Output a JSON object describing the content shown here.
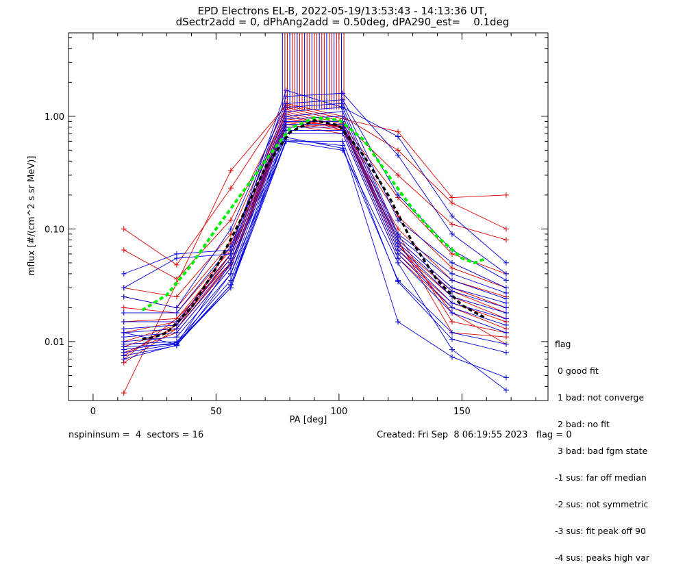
{
  "title_line1": "EPD Electrons EL-B, 2022-05-19/13:53:43 - 14:13:36 UT,",
  "title_line2": "dSectr2add = 0, dPhAng2add = 0.50deg, dPA290_est=    0.1deg",
  "footer": {
    "left": "nspininsum =  4  sectors = 16",
    "right": "Created: Fri Sep  8 06:19:55 2023   flag = 0"
  },
  "legend": {
    "title": "flag",
    "items": [
      " 0 good fit",
      " 1 bad: not converge",
      " 2 bad: no fit",
      " 3 bad: bad fgm state",
      "-1 sus: far off median",
      "-2 sus: not symmetric",
      "-3 sus: fit peak off 90",
      "-4 sus: peaks high var"
    ]
  },
  "colors": {
    "red": "#dd0000",
    "blue": "#0000dd",
    "green": "#00ee00",
    "black": "#000000"
  },
  "chart_data": {
    "type": "line",
    "xlabel": "PA [deg]",
    "ylabel": "mflux [#/(cm^2 s sr MeV)]",
    "xlim": [
      -10,
      185
    ],
    "ylim": [
      0.003,
      5.5
    ],
    "ylog": true,
    "xticks": [
      0,
      50,
      100,
      150
    ],
    "yticks": [
      0.01,
      0.1,
      1.0
    ],
    "ytick_labels": [
      "0.01",
      "0.10",
      "1.00"
    ],
    "pa_bins": [
      12.5,
      34,
      56,
      78.5,
      101.5,
      124,
      146,
      168
    ],
    "series": [
      {
        "color": "red",
        "values": [
          0.0035,
          0.033,
          0.33,
          1.25,
          0.95,
          0.73,
          0.19,
          0.2
        ]
      },
      {
        "color": "red",
        "values": [
          0.1,
          0.048,
          0.23,
          1.3,
          1.0,
          0.5,
          0.17,
          0.1
        ]
      },
      {
        "color": "red",
        "values": [
          0.065,
          0.036,
          0.12,
          1.2,
          0.9,
          0.3,
          0.11,
          0.08
        ]
      },
      {
        "color": "red",
        "values": [
          0.03,
          0.025,
          0.09,
          1.15,
          0.85,
          0.19,
          0.06,
          0.04
        ]
      },
      {
        "color": "red",
        "values": [
          0.025,
          0.02,
          0.075,
          1.1,
          0.8,
          0.13,
          0.045,
          0.03
        ]
      },
      {
        "color": "red",
        "values": [
          0.02,
          0.018,
          0.065,
          1.05,
          0.75,
          0.1,
          0.035,
          0.025
        ]
      },
      {
        "color": "red",
        "values": [
          0.015,
          0.016,
          0.06,
          1.0,
          0.78,
          0.08,
          0.03,
          0.02
        ]
      },
      {
        "color": "red",
        "values": [
          0.012,
          0.015,
          0.055,
          0.95,
          0.8,
          0.07,
          0.028,
          0.018
        ]
      },
      {
        "color": "red",
        "values": [
          0.01,
          0.014,
          0.05,
          0.9,
          0.82,
          0.065,
          0.025,
          0.016
        ]
      },
      {
        "color": "red",
        "values": [
          0.009,
          0.013,
          0.048,
          0.88,
          0.75,
          0.06,
          0.022,
          0.015
        ]
      },
      {
        "color": "red",
        "values": [
          0.008,
          0.012,
          0.045,
          0.85,
          0.7,
          0.055,
          0.02,
          0.013
        ]
      },
      {
        "color": "red",
        "values": [
          0.0075,
          0.014,
          0.07,
          1.2,
          0.9,
          0.09,
          0.015,
          0.012
        ]
      },
      {
        "color": "red",
        "values": [
          0.007,
          0.016,
          0.05,
          0.95,
          0.8,
          0.08,
          0.012,
          0.011
        ]
      },
      {
        "color": "red",
        "values": [
          0.0065,
          0.013,
          0.06,
          0.8,
          0.85,
          0.075,
          0.018,
          0.0095
        ]
      },
      {
        "color": "blue",
        "values": [
          0.04,
          0.06,
          0.065,
          1.7,
          1.2,
          0.66,
          0.13,
          0.05
        ]
      },
      {
        "color": "blue",
        "values": [
          0.03,
          0.055,
          0.06,
          1.5,
          1.6,
          0.45,
          0.09,
          0.04
        ]
      },
      {
        "color": "blue",
        "values": [
          0.025,
          0.02,
          0.1,
          1.3,
          1.4,
          0.2,
          0.065,
          0.035
        ]
      },
      {
        "color": "blue",
        "values": [
          0.018,
          0.018,
          0.07,
          1.2,
          1.3,
          0.12,
          0.05,
          0.03
        ]
      },
      {
        "color": "blue",
        "values": [
          0.015,
          0.015,
          0.06,
          1.1,
          1.2,
          0.09,
          0.04,
          0.027
        ]
      },
      {
        "color": "blue",
        "values": [
          0.013,
          0.014,
          0.055,
          1.0,
          1.1,
          0.085,
          0.035,
          0.024
        ]
      },
      {
        "color": "blue",
        "values": [
          0.012,
          0.013,
          0.05,
          0.95,
          1.0,
          0.08,
          0.03,
          0.022
        ]
      },
      {
        "color": "blue",
        "values": [
          0.011,
          0.012,
          0.045,
          0.9,
          0.9,
          0.075,
          0.028,
          0.02
        ]
      },
      {
        "color": "blue",
        "values": [
          0.01,
          0.011,
          0.04,
          0.85,
          0.85,
          0.07,
          0.025,
          0.018
        ]
      },
      {
        "color": "blue",
        "values": [
          0.0095,
          0.01,
          0.035,
          0.8,
          0.8,
          0.065,
          0.022,
          0.016
        ]
      },
      {
        "color": "blue",
        "values": [
          0.009,
          0.0095,
          0.032,
          0.75,
          0.75,
          0.06,
          0.02,
          0.014
        ]
      },
      {
        "color": "blue",
        "values": [
          0.0085,
          0.0098,
          0.03,
          0.7,
          0.7,
          0.055,
          0.018,
          0.012
        ]
      },
      {
        "color": "blue",
        "values": [
          0.008,
          0.0095,
          0.05,
          0.65,
          0.52,
          0.035,
          0.012,
          0.0095
        ]
      },
      {
        "color": "blue",
        "values": [
          0.0075,
          0.0092,
          0.04,
          0.6,
          0.6,
          0.034,
          0.0105,
          0.008
        ]
      },
      {
        "color": "blue",
        "values": [
          0.007,
          0.0093,
          0.032,
          0.62,
          0.55,
          0.015,
          0.0073,
          0.0048
        ]
      },
      {
        "color": "blue",
        "values": [
          0.012,
          0.0095,
          0.03,
          0.6,
          0.5,
          0.05,
          0.0085,
          0.0037
        ]
      }
    ],
    "median_green": {
      "x": [
        20,
        30,
        40,
        50,
        60,
        70,
        80,
        90,
        100,
        110,
        120,
        130,
        140,
        150,
        155,
        160
      ],
      "values": [
        0.019,
        0.026,
        0.048,
        0.1,
        0.2,
        0.4,
        0.78,
        0.97,
        0.93,
        0.62,
        0.3,
        0.15,
        0.085,
        0.055,
        0.05,
        0.055
      ]
    },
    "fit_black": {
      "x": [
        20,
        25,
        30,
        40,
        50,
        60,
        70,
        80,
        90,
        100,
        110,
        120,
        130,
        140,
        150,
        160
      ],
      "values": [
        0.0105,
        0.011,
        0.012,
        0.02,
        0.045,
        0.12,
        0.35,
        0.72,
        0.92,
        0.83,
        0.45,
        0.2,
        0.075,
        0.035,
        0.021,
        0.016
      ]
    },
    "spikes": {
      "x_range": [
        77,
        102
      ],
      "count": 26,
      "bottom": 1.15
    }
  }
}
